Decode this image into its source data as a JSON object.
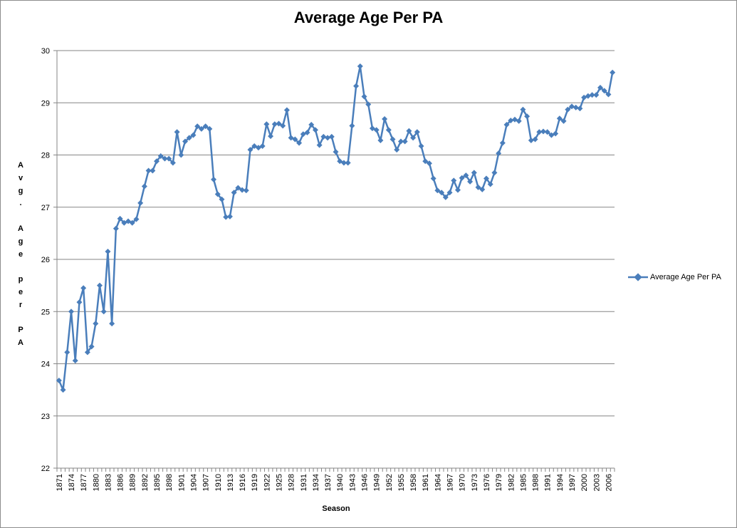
{
  "chart_data": {
    "type": "line",
    "title": "Average Age Per PA",
    "xlabel": "Season",
    "ylabel": "Avg. Age per PA",
    "ylim": [
      22,
      30
    ],
    "yticks": [
      22,
      23,
      24,
      25,
      26,
      27,
      28,
      29,
      30
    ],
    "grid": "horizontal",
    "legend_position": "right",
    "colors": {
      "series": "#4a7ebb",
      "grid": "#868686",
      "axis": "#868686"
    },
    "x_tick_labels": [
      "1871",
      "1874",
      "1877",
      "1880",
      "1883",
      "1886",
      "1889",
      "1892",
      "1895",
      "1898",
      "1901",
      "1904",
      "1907",
      "1910",
      "1913",
      "1916",
      "1919",
      "1922",
      "1925",
      "1928",
      "1931",
      "1934",
      "1937",
      "1940",
      "1943",
      "1946",
      "1949",
      "1952",
      "1955",
      "1958",
      "1961",
      "1964",
      "1967",
      "1970",
      "1973",
      "1976",
      "1979",
      "1982",
      "1985",
      "1988",
      "1991",
      "1994",
      "1997",
      "2000",
      "2003",
      "2006"
    ],
    "x_start": 1871,
    "x_end": 2007,
    "series": [
      {
        "name": "Average Age Per PA",
        "values": [
          23.68,
          23.5,
          24.22,
          25.0,
          24.06,
          25.18,
          25.45,
          24.22,
          24.33,
          24.77,
          25.5,
          25.0,
          26.15,
          24.77,
          26.59,
          26.78,
          26.7,
          26.73,
          26.7,
          26.77,
          27.08,
          27.4,
          27.7,
          27.7,
          27.88,
          27.98,
          27.93,
          27.93,
          27.85,
          28.44,
          28.0,
          28.26,
          28.33,
          28.38,
          28.55,
          28.5,
          28.55,
          28.5,
          27.53,
          27.25,
          27.15,
          26.81,
          26.82,
          27.28,
          27.37,
          27.33,
          27.32,
          28.1,
          28.17,
          28.14,
          28.17,
          28.59,
          28.36,
          28.59,
          28.6,
          28.56,
          28.86,
          28.33,
          28.3,
          28.23,
          28.4,
          28.43,
          28.58,
          28.48,
          28.19,
          28.35,
          28.33,
          28.35,
          28.06,
          27.88,
          27.85,
          27.85,
          28.56,
          29.32,
          29.7,
          29.12,
          28.97,
          28.51,
          28.48,
          28.28,
          28.69,
          28.48,
          28.3,
          28.1,
          28.26,
          28.26,
          28.46,
          28.33,
          28.44,
          28.17,
          27.88,
          27.84,
          27.55,
          27.32,
          27.28,
          27.19,
          27.28,
          27.51,
          27.33,
          27.56,
          27.61,
          27.49,
          27.66,
          27.38,
          27.34,
          27.55,
          27.44,
          27.66,
          28.03,
          28.23,
          28.58,
          28.66,
          28.68,
          28.65,
          28.87,
          28.74,
          28.28,
          28.3,
          28.44,
          28.45,
          28.44,
          28.38,
          28.41,
          28.7,
          28.65,
          28.87,
          28.93,
          28.91,
          28.89,
          29.1,
          29.13,
          29.15,
          29.15,
          29.29,
          29.23,
          29.16,
          29.58
        ]
      }
    ]
  }
}
